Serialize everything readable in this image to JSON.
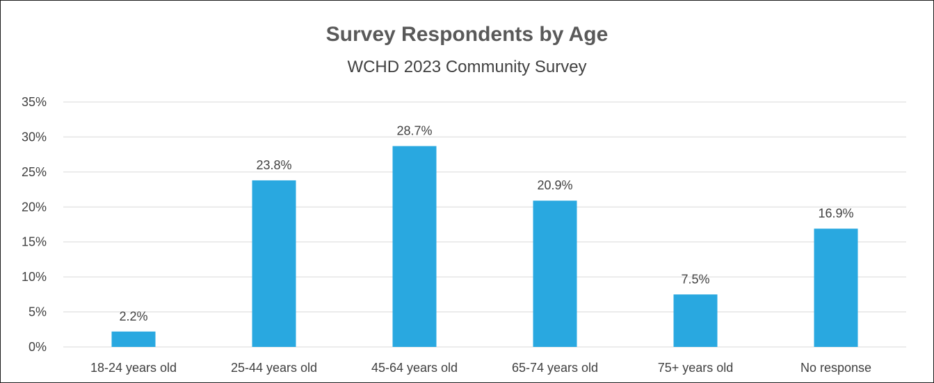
{
  "chart_data": {
    "type": "bar",
    "title": "Survey Respondents by Age",
    "subtitle": "WCHD 2023 Community Survey",
    "xlabel": "",
    "ylabel": "",
    "categories": [
      "18-24 years old",
      "25-44 years old",
      "45-64 years old",
      "65-74 years old",
      "75+ years old",
      "No response"
    ],
    "values": [
      2.2,
      23.8,
      28.7,
      20.9,
      7.5,
      16.9
    ],
    "data_labels": [
      "2.2%",
      "23.8%",
      "28.7%",
      "20.9%",
      "7.5%",
      "16.9%"
    ],
    "ylim": [
      0,
      35
    ],
    "y_ticks": [
      0,
      5,
      10,
      15,
      20,
      25,
      30,
      35
    ],
    "y_tick_labels": [
      "0%",
      "5%",
      "10%",
      "15%",
      "20%",
      "25%",
      "30%",
      "35%"
    ],
    "grid": true,
    "legend": "none",
    "bar_color": "#29A8E0",
    "grid_color": "#D9D9D9"
  }
}
